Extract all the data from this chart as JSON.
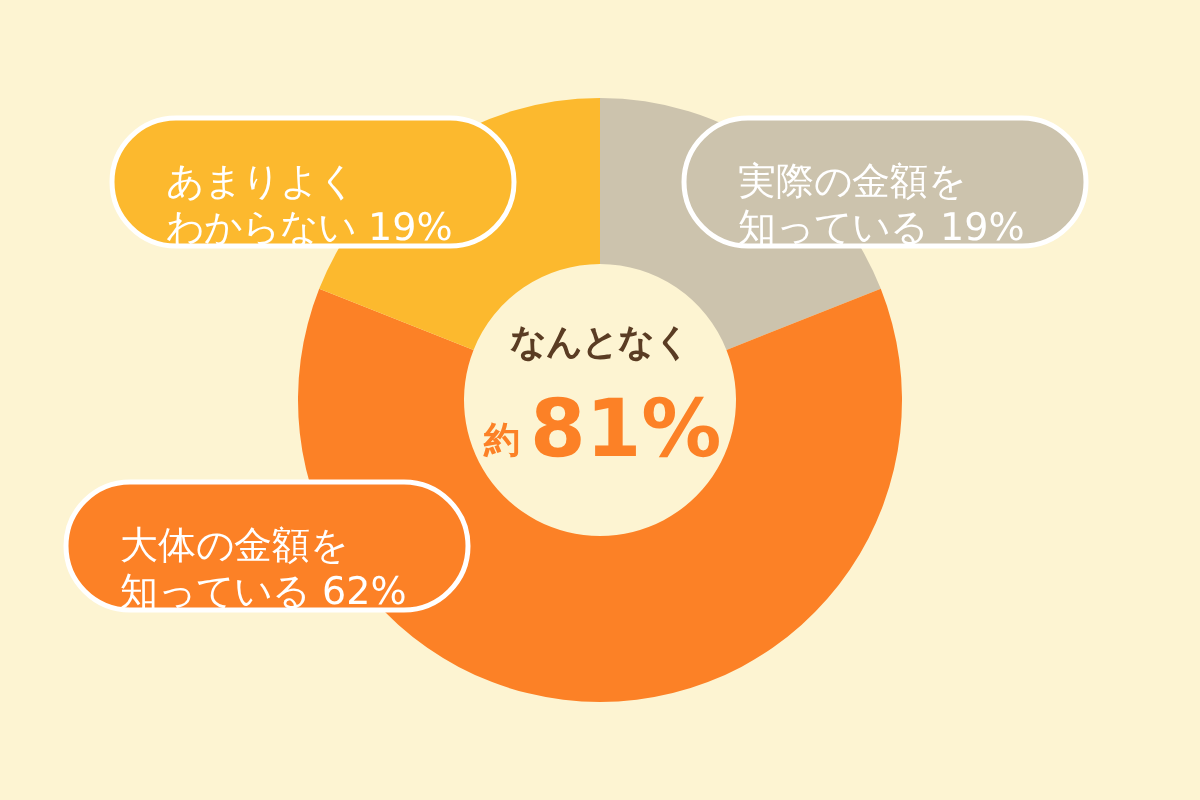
{
  "chart_data": {
    "type": "donut",
    "categories": [
      "実際の金額を知っている",
      "大体の金額を知っている",
      "あまりよくわからない"
    ],
    "values": [
      19,
      62,
      19
    ],
    "colors": [
      "#ccc3ad",
      "#fc8126",
      "#fcb92e"
    ],
    "value_labels": [
      "19%",
      "62%",
      "19%"
    ],
    "annotations": [
      "なんとなく",
      "約",
      "81%"
    ]
  }
}
